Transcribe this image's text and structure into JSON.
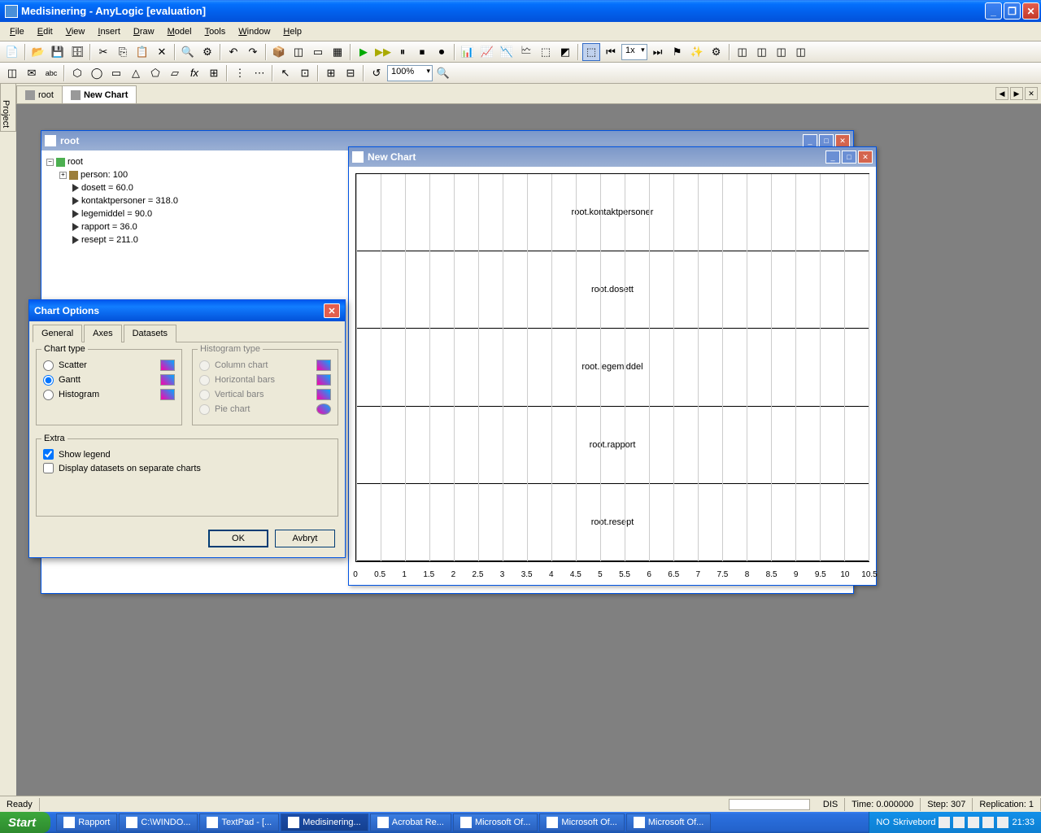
{
  "app": {
    "title": "Medisinering - AnyLogic [evaluation]",
    "menus": [
      "File",
      "Edit",
      "View",
      "Insert",
      "Draw",
      "Model",
      "Tools",
      "Window",
      "Help"
    ],
    "zoom": "100%",
    "speed": "1x"
  },
  "tabs": [
    {
      "label": "root",
      "active": false
    },
    {
      "label": "New Chart",
      "active": true
    }
  ],
  "sidetab": "Project",
  "root_window": {
    "title": "root",
    "tree": {
      "root": "root",
      "children": [
        {
          "label": "person: 100",
          "icon": "cubes",
          "expandable": true
        },
        {
          "label": "dosett = 60.0",
          "icon": "tri"
        },
        {
          "label": "kontaktpersoner = 318.0",
          "icon": "tri"
        },
        {
          "label": "legemiddel = 90.0",
          "icon": "tri"
        },
        {
          "label": "rapport = 36.0",
          "icon": "tri"
        },
        {
          "label": "resept = 211.0",
          "icon": "tri"
        }
      ]
    }
  },
  "chart_window": {
    "title": "New Chart",
    "rows": [
      "root.kontaktpersoner",
      "root.dosett",
      "root.legemiddel",
      "root.rapport",
      "root.resept"
    ],
    "xaxis": {
      "min": 0,
      "max": 10.5,
      "step": 0.5
    },
    "ticks": [
      "0",
      "0.5",
      "1",
      "1.5",
      "2",
      "2.5",
      "3",
      "3.5",
      "4",
      "4.5",
      "5",
      "5.5",
      "6",
      "6.5",
      "7",
      "7.5",
      "8",
      "8.5",
      "9",
      "9.5",
      "10",
      "10.5"
    ],
    "colors": {
      "grid": "#cccccc",
      "border": "#000000",
      "text": "#000000"
    }
  },
  "dialog": {
    "title": "Chart Options",
    "tabs": [
      "General",
      "Axes",
      "Datasets"
    ],
    "active_tab": "General",
    "chart_type": {
      "legend": "Chart type",
      "options": [
        "Scatter",
        "Gantt",
        "Histogram"
      ],
      "selected": "Gantt"
    },
    "histogram_type": {
      "legend": "Histogram type",
      "options": [
        "Column chart",
        "Horizontal bars",
        "Vertical bars",
        "Pie chart"
      ],
      "enabled": false
    },
    "extra": {
      "legend": "Extra",
      "show_legend": {
        "label": "Show legend",
        "checked": true
      },
      "separate_charts": {
        "label": "Display datasets on separate charts",
        "checked": false
      }
    },
    "buttons": {
      "ok": "OK",
      "cancel": "Avbryt"
    }
  },
  "statusbar": {
    "ready": "Ready",
    "dis": "DIS",
    "time": "Time: 0.000000",
    "step": "Step: 307",
    "replication": "Replication: 1"
  },
  "taskbar": {
    "start": "Start",
    "tasks": [
      {
        "label": "Rapport"
      },
      {
        "label": "C:\\WINDO..."
      },
      {
        "label": "TextPad - [..."
      },
      {
        "label": "Medisinering...",
        "active": true
      },
      {
        "label": "Acrobat Re..."
      },
      {
        "label": "Microsoft Of..."
      },
      {
        "label": "Microsoft Of..."
      },
      {
        "label": "Microsoft Of..."
      }
    ],
    "tray": {
      "lang": "NO",
      "desk": "Skrivebord",
      "time": "21:33"
    }
  }
}
